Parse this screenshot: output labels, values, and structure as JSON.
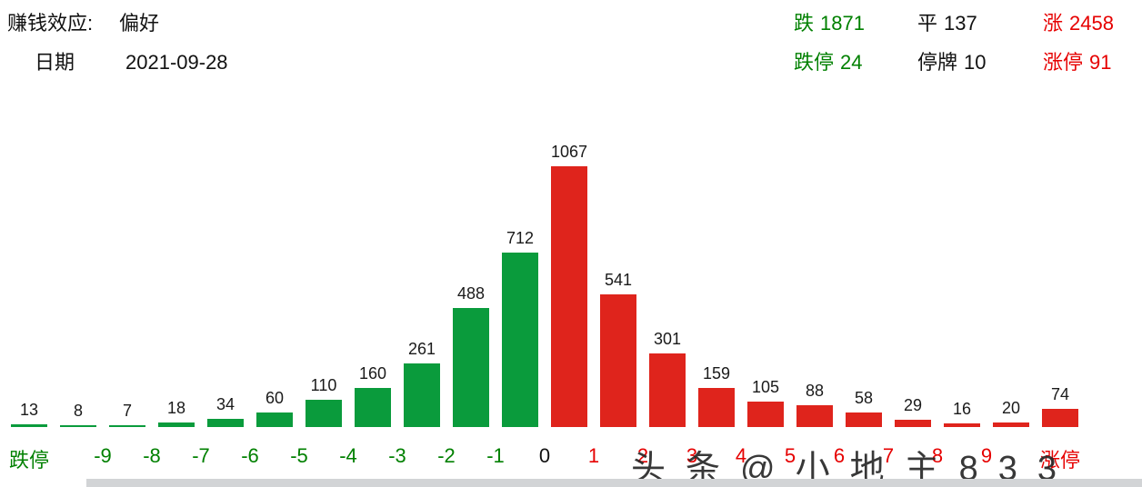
{
  "header": {
    "effect_label": "赚钱效应:",
    "effect_value": "偏好",
    "date_label": "日期",
    "date_value": "2021-09-28",
    "down": {
      "label": "跌",
      "value": "1871"
    },
    "flat": {
      "label": "平",
      "value": "137"
    },
    "up": {
      "label": "涨",
      "value": "2458"
    },
    "limit_down": {
      "label": "跌停",
      "value": "24"
    },
    "suspended": {
      "label": "停牌",
      "value": "10"
    },
    "limit_up": {
      "label": "涨停",
      "value": "91"
    }
  },
  "colors": {
    "bar_green": "#0a9b3c",
    "bar_red": "#df241c",
    "text_green": "#008000",
    "text_red": "#e60000",
    "text_black": "#111111",
    "watermark": "#2a2a2a",
    "bottom_bar": "#d2d4d6"
  },
  "watermark_text": "头条@小地主833",
  "chart_data": {
    "type": "bar",
    "title": "",
    "xlabel": "",
    "ylabel": "",
    "categories": [
      "跌停",
      "-10~-9",
      "-9~-8",
      "-8~-7",
      "-7~-6",
      "-6~-5",
      "-5~-4",
      "-4~-3",
      "-3~-2",
      "-2~-1",
      "-1~0",
      "0~1",
      "1~2",
      "2~3",
      "3~4",
      "4~5",
      "5~6",
      "6~7",
      "7~8",
      "8~9",
      "9~10",
      "涨停"
    ],
    "values": [
      13,
      8,
      7,
      18,
      34,
      60,
      110,
      160,
      261,
      488,
      712,
      1067,
      541,
      301,
      159,
      105,
      88,
      58,
      29,
      16,
      20,
      74
    ],
    "groups": [
      "down",
      "down",
      "down",
      "down",
      "down",
      "down",
      "down",
      "down",
      "down",
      "down",
      "down",
      "up",
      "up",
      "up",
      "up",
      "up",
      "up",
      "up",
      "up",
      "up",
      "up",
      "up"
    ],
    "axis_labels": [
      {
        "text": "跌停",
        "pos": 0.5,
        "tone": "down"
      },
      {
        "text": "-9",
        "pos": 2,
        "tone": "down"
      },
      {
        "text": "-8",
        "pos": 3,
        "tone": "down"
      },
      {
        "text": "-7",
        "pos": 4,
        "tone": "down"
      },
      {
        "text": "-6",
        "pos": 5,
        "tone": "down"
      },
      {
        "text": "-5",
        "pos": 6,
        "tone": "down"
      },
      {
        "text": "-4",
        "pos": 7,
        "tone": "down"
      },
      {
        "text": "-3",
        "pos": 8,
        "tone": "down"
      },
      {
        "text": "-2",
        "pos": 9,
        "tone": "down"
      },
      {
        "text": "-1",
        "pos": 10,
        "tone": "down"
      },
      {
        "text": "0",
        "pos": 11,
        "tone": "flat"
      },
      {
        "text": "1",
        "pos": 12,
        "tone": "up"
      },
      {
        "text": "2",
        "pos": 13,
        "tone": "up"
      },
      {
        "text": "3",
        "pos": 14,
        "tone": "up"
      },
      {
        "text": "4",
        "pos": 15,
        "tone": "up"
      },
      {
        "text": "5",
        "pos": 16,
        "tone": "up"
      },
      {
        "text": "6",
        "pos": 17,
        "tone": "up"
      },
      {
        "text": "7",
        "pos": 18,
        "tone": "up"
      },
      {
        "text": "8",
        "pos": 19,
        "tone": "up"
      },
      {
        "text": "9",
        "pos": 20,
        "tone": "up"
      },
      {
        "text": "涨停",
        "pos": 21.5,
        "tone": "up"
      }
    ],
    "ylim": [
      0,
      1067
    ],
    "grid": false,
    "legend": false
  }
}
